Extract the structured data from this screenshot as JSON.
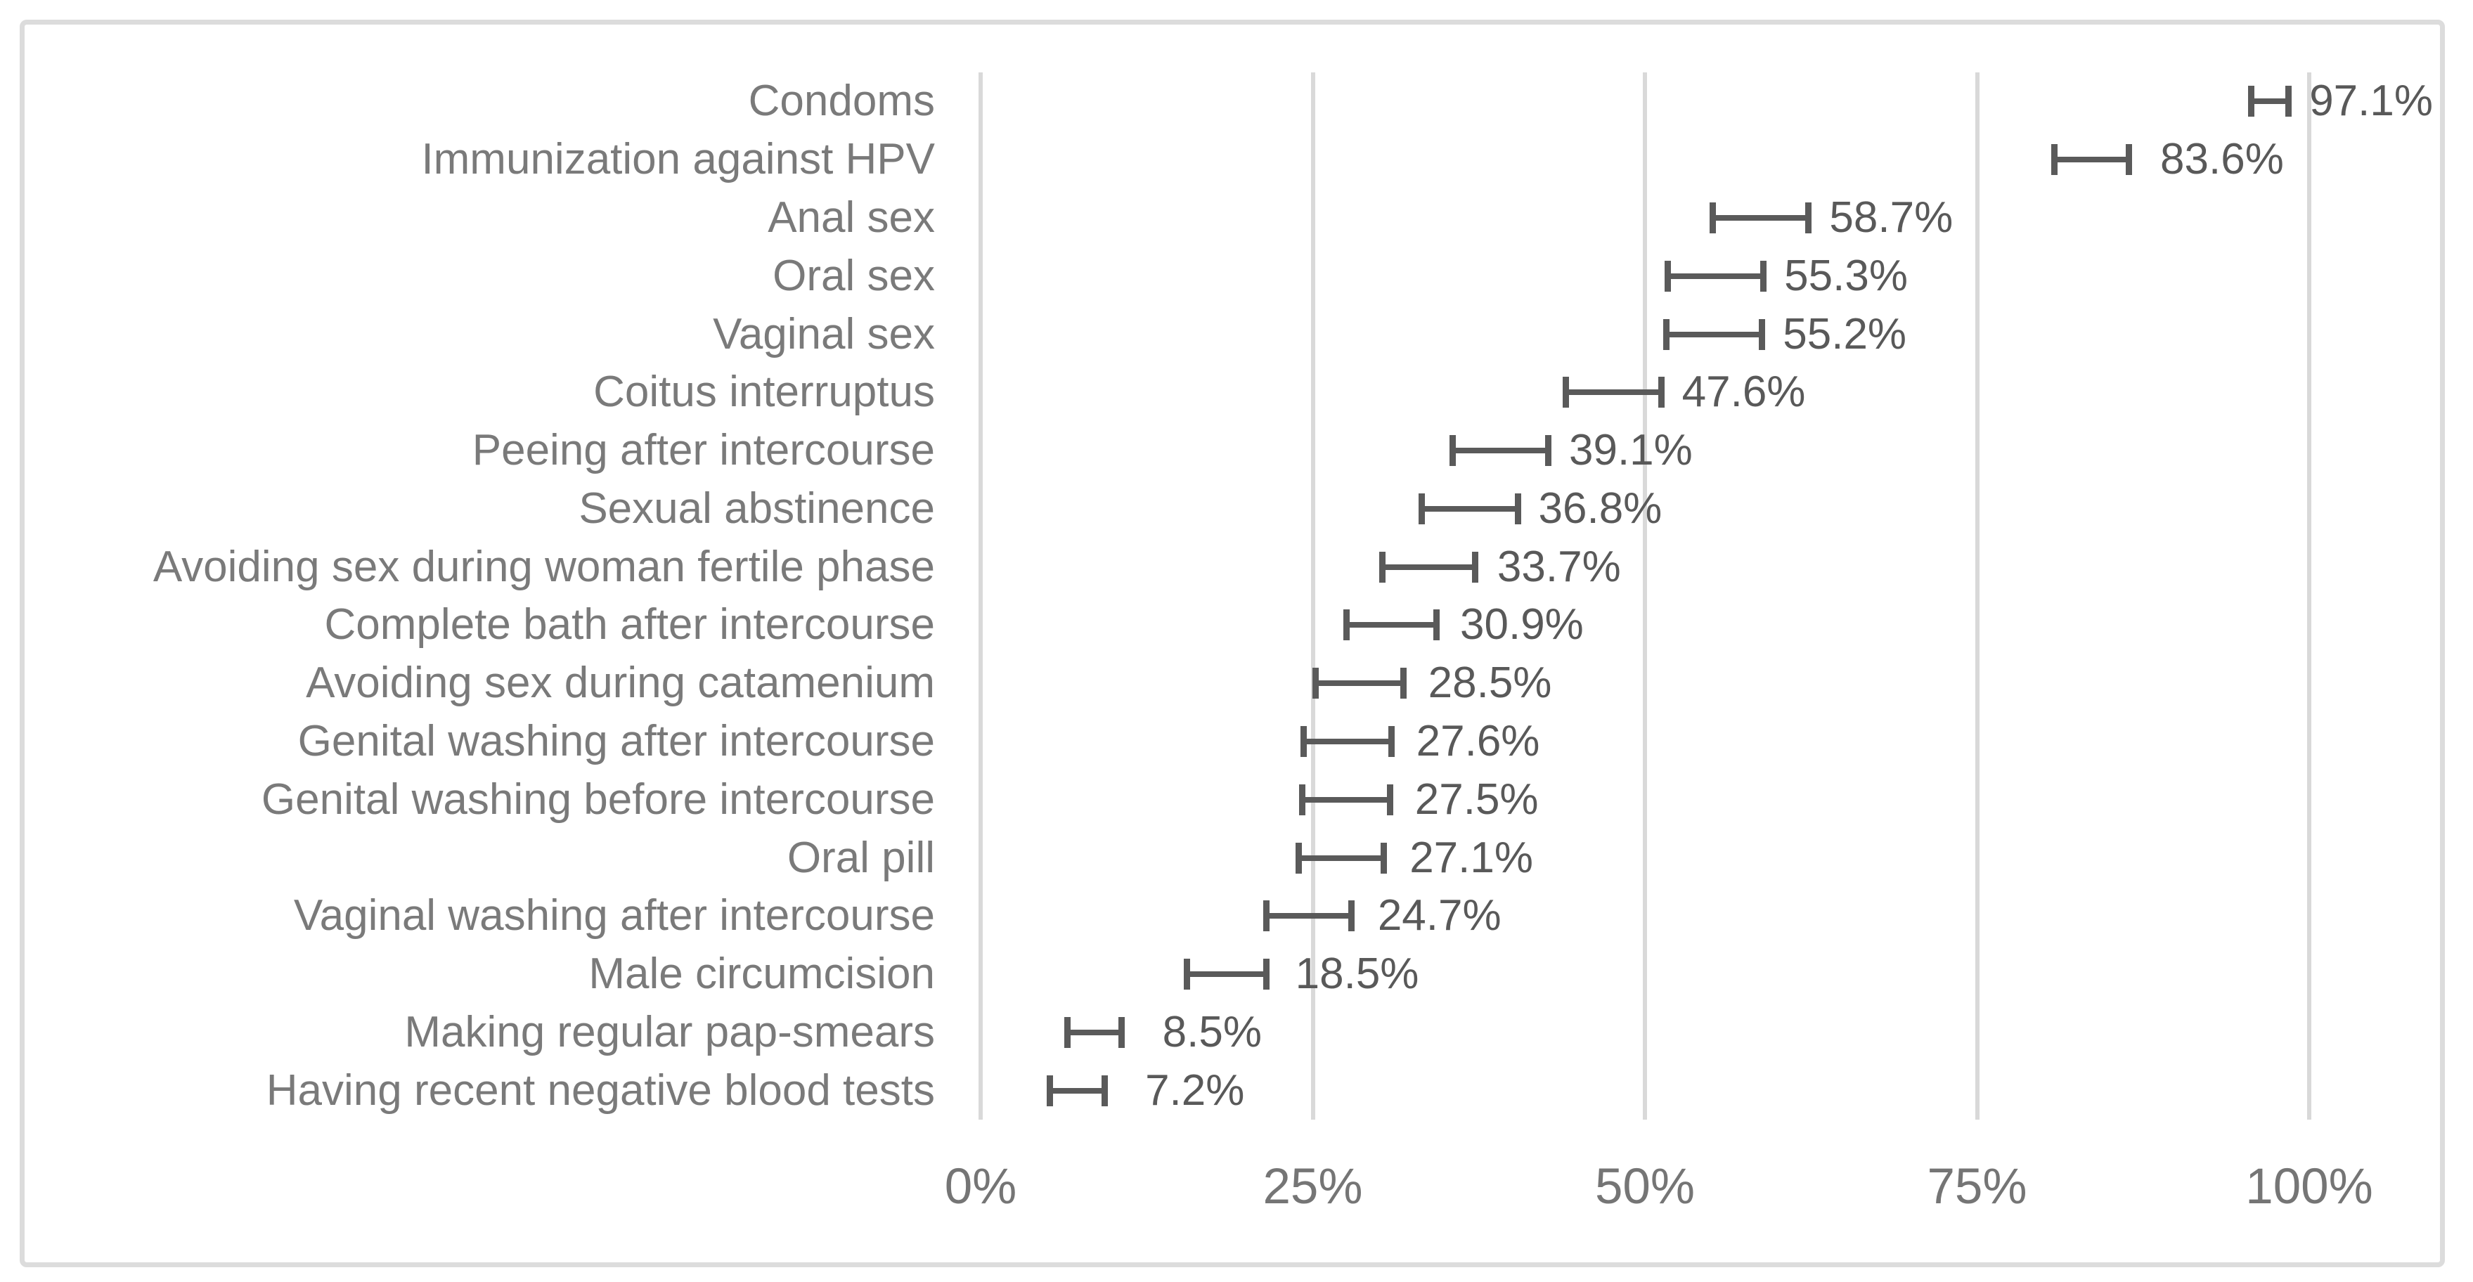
{
  "chart_data": {
    "type": "scatter",
    "subtype": "horizontal-error-bar-chart",
    "title": "",
    "xlabel": "",
    "ylabel": "",
    "xlim": [
      0,
      100
    ],
    "x_ticks": [
      0,
      25,
      50,
      75,
      100
    ],
    "x_tick_labels": [
      "0%",
      "25%",
      "50%",
      "75%",
      "100%"
    ],
    "grid": "vertical gridlines",
    "legend": "none",
    "categories": [
      "Condoms",
      "Immunization against HPV",
      "Anal sex",
      "Oral sex",
      "Vaginal sex",
      "Coitus interruptus",
      "Peeing after intercourse",
      "Sexual abstinence",
      "Avoiding sex during woman fertile phase",
      "Complete bath after intercourse",
      "Avoiding sex during catamenium",
      "Genital washing after intercourse",
      "Genital washing before intercourse",
      "Oral pill",
      "Vaginal washing after intercourse",
      "Male circumcision",
      "Making regular pap-smears",
      "Having recent negative blood tests"
    ],
    "values": [
      97.1,
      83.6,
      58.7,
      55.3,
      55.2,
      47.6,
      39.1,
      36.8,
      33.7,
      30.9,
      28.5,
      27.6,
      27.5,
      27.1,
      24.7,
      18.5,
      8.5,
      7.2
    ],
    "value_labels": [
      "97.1%",
      "83.6%",
      "58.7%",
      "55.3%",
      "55.2%",
      "47.6%",
      "39.1%",
      "36.8%",
      "33.7%",
      "30.9%",
      "28.5%",
      "27.6%",
      "27.5%",
      "27.1%",
      "24.7%",
      "18.5%",
      "8.5%",
      "7.2%"
    ],
    "ci_low": [
      95.6,
      80.8,
      55.1,
      51.7,
      51.6,
      44.0,
      35.5,
      33.2,
      30.2,
      27.5,
      25.2,
      24.3,
      24.2,
      23.9,
      21.5,
      15.5,
      6.5,
      5.2
    ],
    "ci_high": [
      98.4,
      86.4,
      62.3,
      58.9,
      58.8,
      51.2,
      42.7,
      40.4,
      37.2,
      34.3,
      31.8,
      30.9,
      30.8,
      30.3,
      27.9,
      21.5,
      10.6,
      9.3
    ]
  },
  "colors": {
    "background": "#ffffff",
    "frame_border": "#dcdcdc",
    "gridline": "#d9d9d9",
    "error_bar": "#5a5a5a",
    "data_label": "#595959",
    "category_label": "#7a7a7a",
    "axis_label": "#757575"
  }
}
